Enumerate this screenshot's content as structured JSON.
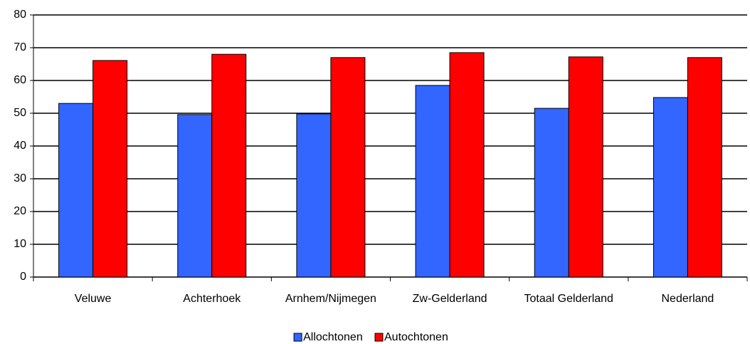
{
  "chart_data": {
    "type": "bar",
    "categories": [
      "Veluwe",
      "Achterhoek",
      "Arnhem/Nijmegen",
      "Zw-Gelderland",
      "Totaal Gelderland",
      "Nederland"
    ],
    "series": [
      {
        "name": "Allochtonen",
        "color": "#3366ff",
        "values": [
          53.0,
          49.6,
          49.8,
          58.5,
          51.5,
          54.8
        ]
      },
      {
        "name": "Autochtonen",
        "color": "#ff0000",
        "values": [
          66.1,
          68.0,
          67.0,
          68.5,
          67.2,
          67.0
        ]
      }
    ],
    "ylim": [
      0,
      80
    ],
    "yticks": [
      0,
      10,
      20,
      30,
      40,
      50,
      60,
      70,
      80
    ],
    "grid": true,
    "legend": "bottom"
  }
}
